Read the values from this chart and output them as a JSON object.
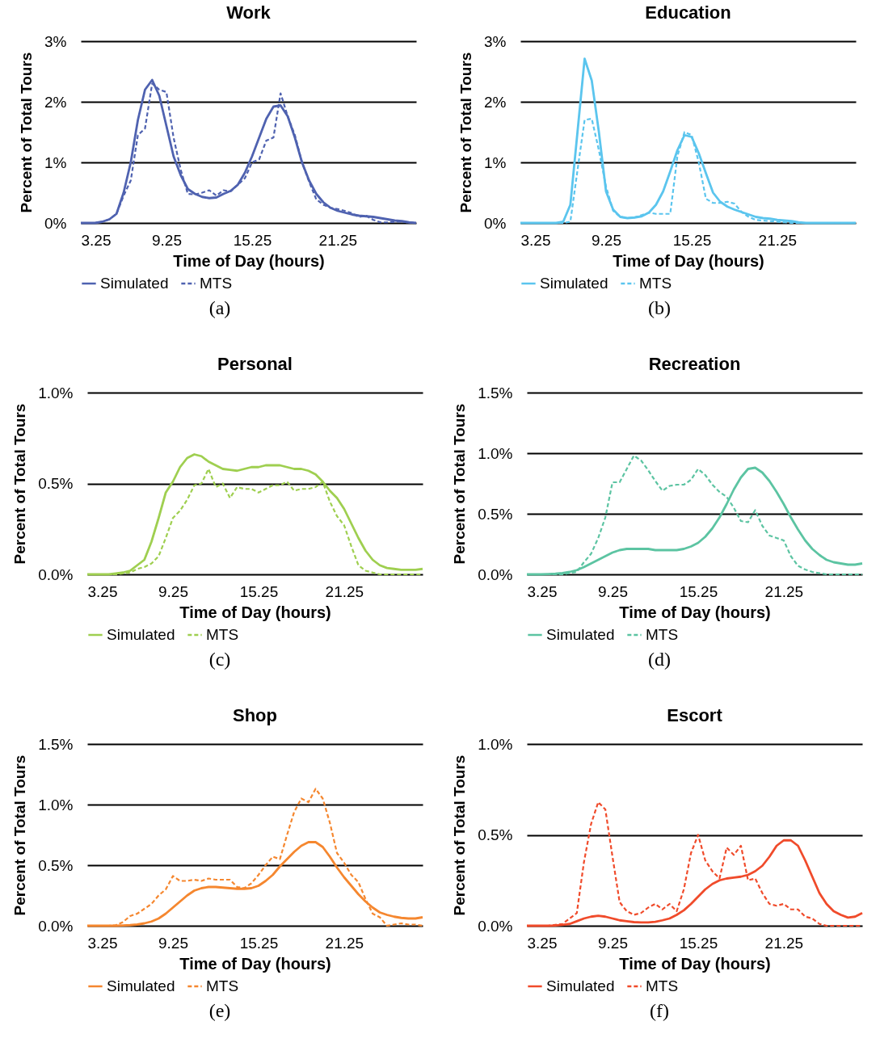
{
  "chart_data": [
    {
      "type": "line",
      "title": "Work",
      "xlabel": "Time of Day (hours)",
      "ylabel": "Percent of Total Tours",
      "annotations": [
        "(a)"
      ],
      "grid": "y",
      "legend": "bottom",
      "x": [
        3.25,
        3.75,
        4.25,
        4.75,
        5.25,
        5.75,
        6.25,
        6.75,
        7.25,
        7.75,
        8.25,
        8.75,
        9.25,
        9.75,
        10.25,
        10.75,
        11.25,
        11.75,
        12.25,
        12.75,
        13.25,
        13.75,
        14.25,
        14.75,
        15.25,
        15.75,
        16.25,
        16.75,
        17.25,
        17.75,
        18.25,
        18.75,
        19.25,
        19.75,
        20.25,
        20.75,
        21.25,
        21.75,
        22.25,
        22.75,
        23.25,
        23.75,
        24.25,
        24.75,
        25.25,
        25.75,
        26.25,
        26.75
      ],
      "xlim": [
        3.25,
        26.75
      ],
      "xticks": [
        3.25,
        9.25,
        15.25,
        21.25
      ],
      "ylim": [
        0,
        3
      ],
      "yticks": [
        {
          "value": 0,
          "label": "0%"
        },
        {
          "value": 1,
          "label": "1%"
        },
        {
          "value": 2,
          "label": "2%"
        },
        {
          "value": 3,
          "label": "3%"
        }
      ],
      "series": [
        {
          "name": "Simulated",
          "color": "#4f62b0",
          "line_style": "solid",
          "values": [
            0,
            0,
            0,
            0.02,
            0.06,
            0.15,
            0.5,
            1.0,
            1.7,
            2.2,
            2.36,
            2.1,
            1.6,
            1.1,
            0.79,
            0.56,
            0.48,
            0.43,
            0.41,
            0.42,
            0.48,
            0.53,
            0.63,
            0.83,
            1.1,
            1.41,
            1.72,
            1.92,
            1.94,
            1.76,
            1.41,
            1.0,
            0.7,
            0.48,
            0.34,
            0.25,
            0.2,
            0.17,
            0.14,
            0.12,
            0.11,
            0.1,
            0.08,
            0.06,
            0.04,
            0.03,
            0.01,
            0
          ]
        },
        {
          "name": "MTS",
          "color": "#4f62b0",
          "line_style": "dashed",
          "values": [
            0,
            0,
            0,
            0.02,
            0.06,
            0.15,
            0.45,
            0.7,
            1.45,
            1.56,
            2.3,
            2.2,
            2.16,
            1.41,
            0.88,
            0.48,
            0.47,
            0.5,
            0.54,
            0.45,
            0.54,
            0.52,
            0.63,
            0.74,
            1.0,
            1.05,
            1.36,
            1.41,
            2.14,
            1.76,
            1.45,
            1.0,
            0.68,
            0.39,
            0.3,
            0.25,
            0.23,
            0.2,
            0.16,
            0.1,
            0.12,
            0.05,
            0.01,
            0.01,
            0.02,
            0.02,
            0.01,
            0
          ]
        }
      ]
    },
    {
      "type": "line",
      "title": "Education",
      "xlabel": "Time of Day (hours)",
      "ylabel": "Percent of Total Tours",
      "annotations": [
        "(b)"
      ],
      "grid": "y",
      "legend": "bottom",
      "x": [
        3.25,
        3.75,
        4.25,
        4.75,
        5.25,
        5.75,
        6.25,
        6.75,
        7.25,
        7.75,
        8.25,
        8.75,
        9.25,
        9.75,
        10.25,
        10.75,
        11.25,
        11.75,
        12.25,
        12.75,
        13.25,
        13.75,
        14.25,
        14.75,
        15.25,
        15.75,
        16.25,
        16.75,
        17.25,
        17.75,
        18.25,
        18.75,
        19.25,
        19.75,
        20.25,
        20.75,
        21.25,
        21.75,
        22.25,
        22.75,
        23.25,
        23.75,
        24.25,
        24.75,
        25.25,
        25.75,
        26.25,
        26.75
      ],
      "xlim": [
        3.25,
        26.75
      ],
      "xticks": [
        3.25,
        9.25,
        15.25,
        21.25
      ],
      "ylim": [
        0,
        3
      ],
      "yticks": [
        {
          "value": 0,
          "label": "0%"
        },
        {
          "value": 1,
          "label": "1%"
        },
        {
          "value": 2,
          "label": "2%"
        },
        {
          "value": 3,
          "label": "3%"
        }
      ],
      "series": [
        {
          "name": "Simulated",
          "color": "#5bc5ee",
          "line_style": "solid",
          "values": [
            0,
            0,
            0,
            0,
            0,
            0,
            0.02,
            0.3,
            1.5,
            2.71,
            2.35,
            1.5,
            0.52,
            0.22,
            0.1,
            0.08,
            0.09,
            0.11,
            0.17,
            0.3,
            0.52,
            0.85,
            1.2,
            1.45,
            1.42,
            1.15,
            0.82,
            0.5,
            0.35,
            0.27,
            0.22,
            0.18,
            0.14,
            0.1,
            0.08,
            0.07,
            0.05,
            0.04,
            0.03,
            0.01,
            0,
            0,
            0,
            0,
            0,
            0,
            0,
            0
          ]
        },
        {
          "name": "MTS",
          "color": "#5bc5ee",
          "line_style": "dashed",
          "values": [
            0,
            0,
            0,
            0,
            0,
            0,
            0,
            0.02,
            0.87,
            1.7,
            1.72,
            1.2,
            0.6,
            0.2,
            0.1,
            0.08,
            0.09,
            0.13,
            0.17,
            0.15,
            0.15,
            0.15,
            1.1,
            1.5,
            1.45,
            1.0,
            0.4,
            0.33,
            0.33,
            0.35,
            0.32,
            0.18,
            0.1,
            0.05,
            0.04,
            0.03,
            0.02,
            0.01,
            0,
            0,
            0,
            0,
            0,
            0,
            0,
            0,
            0,
            0
          ]
        }
      ]
    },
    {
      "type": "line",
      "title": "Personal",
      "xlabel": "Time of Day (hours)",
      "ylabel": "Percent of Total Tours",
      "annotations": [
        "(c)"
      ],
      "grid": "y",
      "legend": "bottom",
      "x": [
        3.25,
        3.75,
        4.25,
        4.75,
        5.25,
        5.75,
        6.25,
        6.75,
        7.25,
        7.75,
        8.25,
        8.75,
        9.25,
        9.75,
        10.25,
        10.75,
        11.25,
        11.75,
        12.25,
        12.75,
        13.25,
        13.75,
        14.25,
        14.75,
        15.25,
        15.75,
        16.25,
        16.75,
        17.25,
        17.75,
        18.25,
        18.75,
        19.25,
        19.75,
        20.25,
        20.75,
        21.25,
        21.75,
        22.25,
        22.75,
        23.25,
        23.75,
        24.25,
        24.75,
        25.25,
        25.75,
        26.25,
        26.75
      ],
      "xlim": [
        3.25,
        26.75
      ],
      "xticks": [
        3.25,
        9.25,
        15.25,
        21.25
      ],
      "ylim": [
        0,
        1
      ],
      "yticks": [
        {
          "value": 0,
          "label": "0.0%"
        },
        {
          "value": 0.5,
          "label": "0.5%"
        },
        {
          "value": 1,
          "label": "1.0%"
        }
      ],
      "series": [
        {
          "name": "Simulated",
          "color": "#9fcf50",
          "line_style": "solid",
          "values": [
            0,
            0,
            0,
            0,
            0.005,
            0.01,
            0.02,
            0.05,
            0.08,
            0.18,
            0.31,
            0.45,
            0.51,
            0.59,
            0.64,
            0.66,
            0.65,
            0.62,
            0.6,
            0.58,
            0.575,
            0.57,
            0.58,
            0.59,
            0.59,
            0.6,
            0.6,
            0.6,
            0.59,
            0.58,
            0.58,
            0.57,
            0.55,
            0.51,
            0.46,
            0.42,
            0.36,
            0.28,
            0.2,
            0.13,
            0.08,
            0.05,
            0.035,
            0.03,
            0.025,
            0.025,
            0.025,
            0.03
          ]
        },
        {
          "name": "MTS",
          "color": "#9fcf50",
          "line_style": "dashed",
          "values": [
            0,
            0,
            0,
            0,
            0,
            0.005,
            0.01,
            0.03,
            0.04,
            0.06,
            0.1,
            0.2,
            0.31,
            0.35,
            0.41,
            0.49,
            0.5,
            0.58,
            0.48,
            0.5,
            0.42,
            0.48,
            0.47,
            0.47,
            0.45,
            0.47,
            0.49,
            0.49,
            0.51,
            0.46,
            0.47,
            0.47,
            0.48,
            0.51,
            0.4,
            0.32,
            0.27,
            0.155,
            0.05,
            0.02,
            0.01,
            0,
            0,
            0,
            0,
            0,
            0,
            0
          ]
        }
      ]
    },
    {
      "type": "line",
      "title": "Recreation",
      "xlabel": "Time of Day (hours)",
      "ylabel": "Percent of Total Tours",
      "annotations": [
        "(d)"
      ],
      "grid": "y",
      "legend": "bottom",
      "x": [
        3.25,
        3.75,
        4.25,
        4.75,
        5.25,
        5.75,
        6.25,
        6.75,
        7.25,
        7.75,
        8.25,
        8.75,
        9.25,
        9.75,
        10.25,
        10.75,
        11.25,
        11.75,
        12.25,
        12.75,
        13.25,
        13.75,
        14.25,
        14.75,
        15.25,
        15.75,
        16.25,
        16.75,
        17.25,
        17.75,
        18.25,
        18.75,
        19.25,
        19.75,
        20.25,
        20.75,
        21.25,
        21.75,
        22.25,
        22.75,
        23.25,
        23.75,
        24.25,
        24.75,
        25.25,
        25.75,
        26.25,
        26.75
      ],
      "xlim": [
        3.25,
        26.75
      ],
      "xticks": [
        3.25,
        9.25,
        15.25,
        21.25
      ],
      "ylim": [
        0,
        1.5
      ],
      "yticks": [
        {
          "value": 0,
          "label": "0.0%"
        },
        {
          "value": 0.5,
          "label": "0.5%"
        },
        {
          "value": 1,
          "label": "1.0%"
        },
        {
          "value": 1.5,
          "label": "1.5%"
        }
      ],
      "series": [
        {
          "name": "Simulated",
          "color": "#5cc4a2",
          "line_style": "solid",
          "values": [
            0,
            0,
            0,
            0.003,
            0.005,
            0.01,
            0.02,
            0.035,
            0.06,
            0.09,
            0.12,
            0.15,
            0.18,
            0.2,
            0.21,
            0.21,
            0.21,
            0.21,
            0.2,
            0.2,
            0.2,
            0.2,
            0.21,
            0.23,
            0.26,
            0.31,
            0.38,
            0.47,
            0.58,
            0.7,
            0.8,
            0.87,
            0.88,
            0.84,
            0.77,
            0.68,
            0.58,
            0.47,
            0.37,
            0.28,
            0.21,
            0.16,
            0.12,
            0.1,
            0.09,
            0.08,
            0.08,
            0.09
          ]
        },
        {
          "name": "MTS",
          "color": "#5cc4a2",
          "line_style": "dashed",
          "values": [
            0,
            0,
            0,
            0,
            0,
            0,
            0.01,
            0.02,
            0.1,
            0.17,
            0.3,
            0.47,
            0.76,
            0.76,
            0.87,
            0.98,
            0.94,
            0.86,
            0.77,
            0.69,
            0.73,
            0.74,
            0.74,
            0.78,
            0.87,
            0.82,
            0.74,
            0.68,
            0.64,
            0.55,
            0.44,
            0.43,
            0.53,
            0.4,
            0.32,
            0.3,
            0.28,
            0.15,
            0.07,
            0.04,
            0.02,
            0.01,
            0,
            0,
            0,
            0,
            0,
            0
          ]
        }
      ]
    },
    {
      "type": "line",
      "title": "Shop",
      "xlabel": "Time of Day (hours)",
      "ylabel": "Percent of Total Tours",
      "annotations": [
        "(e)"
      ],
      "grid": "y",
      "legend": "bottom",
      "x": [
        3.25,
        3.75,
        4.25,
        4.75,
        5.25,
        5.75,
        6.25,
        6.75,
        7.25,
        7.75,
        8.25,
        8.75,
        9.25,
        9.75,
        10.25,
        10.75,
        11.25,
        11.75,
        12.25,
        12.75,
        13.25,
        13.75,
        14.25,
        14.75,
        15.25,
        15.75,
        16.25,
        16.75,
        17.25,
        17.75,
        18.25,
        18.75,
        19.25,
        19.75,
        20.25,
        20.75,
        21.25,
        21.75,
        22.25,
        22.75,
        23.25,
        23.75,
        24.25,
        24.75,
        25.25,
        25.75,
        26.25,
        26.75
      ],
      "xlim": [
        3.25,
        26.75
      ],
      "xticks": [
        3.25,
        9.25,
        15.25,
        21.25
      ],
      "ylim": [
        0,
        1.5
      ],
      "yticks": [
        {
          "value": 0,
          "label": "0.0%"
        },
        {
          "value": 0.5,
          "label": "0.5%"
        },
        {
          "value": 1,
          "label": "1.0%"
        },
        {
          "value": 1.5,
          "label": "1.5%"
        }
      ],
      "series": [
        {
          "name": "Simulated",
          "color": "#f5872f",
          "line_style": "solid",
          "values": [
            0,
            0,
            0,
            0,
            0,
            0.002,
            0.005,
            0.01,
            0.02,
            0.035,
            0.06,
            0.1,
            0.15,
            0.2,
            0.25,
            0.29,
            0.31,
            0.32,
            0.32,
            0.315,
            0.31,
            0.305,
            0.305,
            0.31,
            0.33,
            0.37,
            0.42,
            0.49,
            0.55,
            0.61,
            0.66,
            0.69,
            0.69,
            0.65,
            0.57,
            0.48,
            0.4,
            0.33,
            0.26,
            0.2,
            0.15,
            0.11,
            0.09,
            0.075,
            0.065,
            0.06,
            0.06,
            0.07
          ]
        },
        {
          "name": "MTS",
          "color": "#f5872f",
          "line_style": "dashed",
          "values": [
            0,
            0,
            0,
            0,
            0.005,
            0.03,
            0.08,
            0.1,
            0.14,
            0.18,
            0.25,
            0.3,
            0.41,
            0.37,
            0.37,
            0.38,
            0.37,
            0.39,
            0.38,
            0.38,
            0.38,
            0.32,
            0.31,
            0.35,
            0.42,
            0.5,
            0.57,
            0.55,
            0.75,
            0.94,
            1.05,
            1.02,
            1.13,
            1.05,
            0.85,
            0.6,
            0.52,
            0.42,
            0.36,
            0.22,
            0.1,
            0.07,
            0,
            0.01,
            0.02,
            0.01,
            0.01,
            0
          ]
        }
      ]
    },
    {
      "type": "line",
      "title": "Escort",
      "xlabel": "Time of Day (hours)",
      "ylabel": "Percent of Total Tours",
      "annotations": [
        "(f)"
      ],
      "grid": "y",
      "legend": "bottom",
      "x": [
        3.25,
        3.75,
        4.25,
        4.75,
        5.25,
        5.75,
        6.25,
        6.75,
        7.25,
        7.75,
        8.25,
        8.75,
        9.25,
        9.75,
        10.25,
        10.75,
        11.25,
        11.75,
        12.25,
        12.75,
        13.25,
        13.75,
        14.25,
        14.75,
        15.25,
        15.75,
        16.25,
        16.75,
        17.25,
        17.75,
        18.25,
        18.75,
        19.25,
        19.75,
        20.25,
        20.75,
        21.25,
        21.75,
        22.25,
        22.75,
        23.25,
        23.75,
        24.25,
        24.75,
        25.25,
        25.75,
        26.25,
        26.75
      ],
      "xlim": [
        3.25,
        26.75
      ],
      "xticks": [
        3.25,
        9.25,
        15.25,
        21.25
      ],
      "ylim": [
        0,
        1
      ],
      "yticks": [
        {
          "value": 0,
          "label": "0.0%"
        },
        {
          "value": 0.5,
          "label": "0.5%"
        },
        {
          "value": 1,
          "label": "1.0%"
        }
      ],
      "series": [
        {
          "name": "Simulated",
          "color": "#f04b2b",
          "line_style": "solid",
          "values": [
            0,
            0,
            0,
            0,
            0.002,
            0.005,
            0.01,
            0.025,
            0.04,
            0.05,
            0.055,
            0.05,
            0.04,
            0.03,
            0.025,
            0.02,
            0.018,
            0.018,
            0.022,
            0.03,
            0.04,
            0.06,
            0.085,
            0.12,
            0.16,
            0.2,
            0.23,
            0.25,
            0.26,
            0.265,
            0.27,
            0.28,
            0.3,
            0.33,
            0.38,
            0.44,
            0.47,
            0.47,
            0.44,
            0.36,
            0.27,
            0.18,
            0.12,
            0.08,
            0.06,
            0.045,
            0.05,
            0.07
          ]
        },
        {
          "name": "MTS",
          "color": "#f04b2b",
          "line_style": "dashed",
          "values": [
            0,
            0,
            0,
            0,
            0.005,
            0.01,
            0.04,
            0.07,
            0.35,
            0.56,
            0.68,
            0.64,
            0.38,
            0.13,
            0.08,
            0.06,
            0.07,
            0.1,
            0.12,
            0.09,
            0.12,
            0.08,
            0.2,
            0.4,
            0.5,
            0.36,
            0.3,
            0.26,
            0.43,
            0.39,
            0.44,
            0.25,
            0.26,
            0.18,
            0.12,
            0.11,
            0.12,
            0.09,
            0.09,
            0.05,
            0.04,
            0.01,
            0,
            0,
            0,
            0,
            0,
            0
          ]
        }
      ]
    }
  ]
}
